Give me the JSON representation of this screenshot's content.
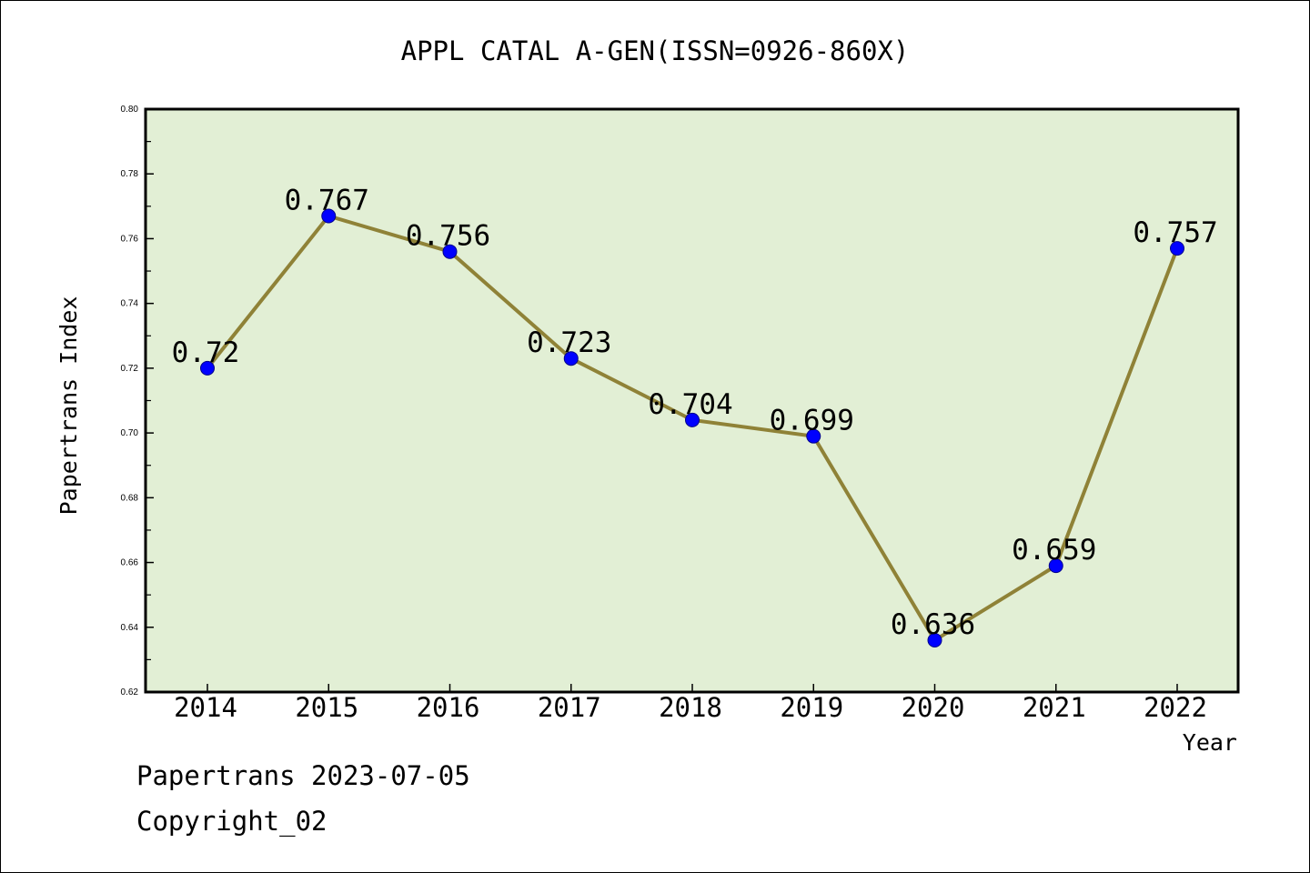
{
  "footer": {
    "line1": "Papertrans 2023-07-05",
    "line2": "Copyright_02"
  },
  "chart_data": {
    "type": "line",
    "title": "APPL CATAL A-GEN(ISSN=0926-860X)",
    "xlabel": "Year",
    "ylabel": "Papertrans Index",
    "categories": [
      "2014",
      "2015",
      "2016",
      "2017",
      "2018",
      "2019",
      "2020",
      "2021",
      "2022"
    ],
    "values": [
      0.72,
      0.767,
      0.756,
      0.723,
      0.704,
      0.699,
      0.636,
      0.659,
      0.757
    ],
    "data_labels": [
      "0.72",
      "0.767",
      "0.756",
      "0.723",
      "0.704",
      "0.699",
      "0.636",
      "0.659",
      "0.757"
    ],
    "ylim": [
      0.62,
      0.8
    ],
    "yticks": [
      "0.62",
      "0.64",
      "0.66",
      "0.68",
      "0.70",
      "0.72",
      "0.74",
      "0.76",
      "0.78",
      "0.80"
    ],
    "grid": false,
    "legend": "none",
    "colors": {
      "plot_background": "#e2efd5",
      "line": "#8f8237",
      "marker": "#0000ff"
    }
  }
}
